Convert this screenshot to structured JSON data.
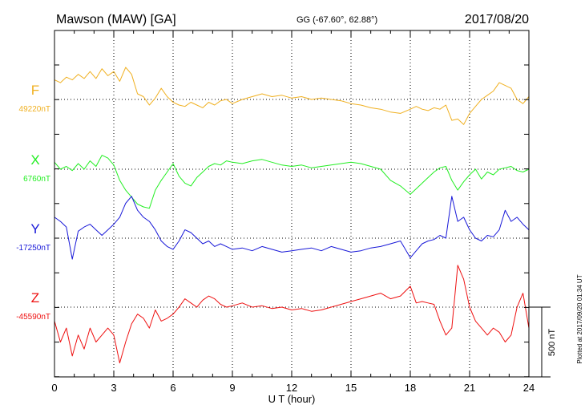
{
  "header": {
    "station": "Mawson (MAW)  [GA]",
    "coords": "GG (-67.60°,  62.88°)",
    "date": "2017/08/20"
  },
  "plotted_note": "Plotted at 2017/09/20 01:34  UT",
  "chart_data": {
    "type": "line",
    "xlabel": "U T (hour)",
    "xlim": [
      0,
      24
    ],
    "xticks": [
      "0",
      "3",
      "6",
      "9",
      "12",
      "15",
      "18",
      "21",
      "24"
    ],
    "grid": "dotted",
    "scale_bar": {
      "label": "500 nT",
      "value_nT": 500
    },
    "series": [
      {
        "name": "F",
        "baseline_label": "49220nT",
        "baseline_nT": 49220,
        "color": "#f0b020",
        "x": [
          0,
          0.3,
          0.6,
          0.9,
          1.2,
          1.5,
          1.8,
          2.1,
          2.4,
          2.7,
          3.0,
          3.3,
          3.6,
          3.9,
          4.2,
          4.5,
          4.8,
          5.1,
          5.4,
          5.7,
          6.0,
          6.3,
          6.6,
          6.9,
          7.2,
          7.5,
          7.8,
          8.1,
          8.4,
          8.7,
          9.0,
          9.5,
          10,
          10.5,
          11,
          11.5,
          12,
          12.5,
          13,
          13.5,
          14,
          14.5,
          15,
          15.5,
          16,
          16.5,
          17,
          17.5,
          18,
          18.3,
          18.6,
          18.9,
          19.2,
          19.5,
          19.8,
          20.1,
          20.4,
          20.7,
          21.0,
          21.3,
          21.6,
          21.9,
          22.2,
          22.5,
          22.8,
          23.1,
          23.4,
          23.7,
          24.0
        ],
        "y": [
          140,
          120,
          160,
          140,
          180,
          150,
          200,
          150,
          220,
          170,
          200,
          130,
          230,
          180,
          40,
          20,
          -40,
          10,
          80,
          20,
          -20,
          -40,
          -50,
          -20,
          -40,
          -60,
          -20,
          -40,
          -10,
          0,
          -30,
          0,
          20,
          40,
          20,
          30,
          10,
          20,
          0,
          10,
          0,
          -10,
          -30,
          -40,
          -60,
          -70,
          -90,
          -100,
          -70,
          -50,
          -70,
          -80,
          -60,
          -70,
          -40,
          -150,
          -140,
          -180,
          -100,
          -50,
          0,
          30,
          60,
          120,
          100,
          80,
          0,
          -30,
          20
        ]
      },
      {
        "name": "X",
        "baseline_label": "6760nT",
        "baseline_nT": 6760,
        "color": "#22ee22",
        "x": [
          0,
          0.3,
          0.6,
          0.9,
          1.2,
          1.5,
          1.8,
          2.1,
          2.4,
          2.7,
          3.0,
          3.3,
          3.6,
          3.9,
          4.2,
          4.5,
          4.8,
          5.1,
          5.4,
          5.7,
          6.0,
          6.3,
          6.6,
          6.9,
          7.2,
          7.5,
          7.8,
          8.1,
          8.4,
          8.7,
          9.0,
          9.5,
          10,
          10.5,
          11,
          11.5,
          12,
          12.5,
          13,
          13.5,
          14,
          14.5,
          15,
          15.5,
          16,
          16.5,
          17,
          17.5,
          18,
          18.3,
          18.6,
          18.9,
          19.2,
          19.5,
          19.8,
          20.1,
          20.4,
          20.7,
          21.0,
          21.3,
          21.6,
          21.9,
          22.2,
          22.5,
          22.8,
          23.1,
          23.4,
          23.7,
          24.0
        ],
        "y": [
          50,
          0,
          20,
          -10,
          40,
          0,
          60,
          20,
          100,
          80,
          30,
          -80,
          -150,
          -200,
          -250,
          -270,
          -280,
          -150,
          -80,
          -20,
          40,
          -50,
          -100,
          -120,
          -60,
          -20,
          20,
          40,
          30,
          60,
          50,
          40,
          60,
          70,
          50,
          30,
          20,
          30,
          10,
          20,
          30,
          40,
          50,
          40,
          20,
          0,
          -80,
          -120,
          -180,
          -140,
          -100,
          -60,
          -20,
          10,
          20,
          -80,
          -150,
          -90,
          -40,
          0,
          -70,
          -20,
          -40,
          0,
          10,
          20,
          -10,
          -20,
          0
        ]
      },
      {
        "name": "Y",
        "baseline_label": "-17250nT",
        "baseline_nT": -17250,
        "color": "#1818d8",
        "x": [
          0,
          0.3,
          0.6,
          0.9,
          1.2,
          1.5,
          1.8,
          2.1,
          2.4,
          2.7,
          3.0,
          3.3,
          3.6,
          3.9,
          4.2,
          4.5,
          4.8,
          5.1,
          5.4,
          5.7,
          6.0,
          6.3,
          6.6,
          6.9,
          7.2,
          7.5,
          7.8,
          8.1,
          8.4,
          8.7,
          9.0,
          9.5,
          10,
          10.5,
          11,
          11.5,
          12,
          12.5,
          13,
          13.5,
          14,
          14.5,
          15,
          15.5,
          16,
          16.5,
          17,
          17.5,
          18,
          18.3,
          18.6,
          18.9,
          19.2,
          19.5,
          19.8,
          20.1,
          20.4,
          20.7,
          21.0,
          21.3,
          21.6,
          21.9,
          22.2,
          22.5,
          22.8,
          23.1,
          23.4,
          23.7,
          24.0
        ],
        "y": [
          150,
          120,
          80,
          -150,
          50,
          80,
          100,
          60,
          20,
          60,
          100,
          150,
          250,
          300,
          200,
          150,
          120,
          60,
          -20,
          -60,
          -80,
          -20,
          60,
          40,
          0,
          -40,
          -20,
          -60,
          -40,
          -60,
          -80,
          -70,
          -90,
          -60,
          -80,
          -100,
          -90,
          -80,
          -70,
          -90,
          -60,
          -80,
          -100,
          -90,
          -70,
          -60,
          -40,
          -20,
          -140,
          -90,
          -40,
          -20,
          -10,
          20,
          0,
          300,
          120,
          150,
          60,
          0,
          -20,
          20,
          10,
          60,
          200,
          120,
          150,
          100,
          60
        ]
      },
      {
        "name": "Z",
        "baseline_label": "-45590nT",
        "baseline_nT": -45590,
        "color": "#ee1010",
        "x": [
          0,
          0.3,
          0.6,
          0.9,
          1.2,
          1.5,
          1.8,
          2.1,
          2.4,
          2.7,
          3.0,
          3.3,
          3.6,
          3.9,
          4.2,
          4.5,
          4.8,
          5.1,
          5.4,
          5.7,
          6.0,
          6.3,
          6.6,
          6.9,
          7.2,
          7.5,
          7.8,
          8.1,
          8.4,
          8.7,
          9.0,
          9.5,
          10,
          10.5,
          11,
          11.5,
          12,
          12.5,
          13,
          13.5,
          14,
          14.5,
          15,
          15.5,
          16,
          16.5,
          17,
          17.5,
          18,
          18.3,
          18.6,
          18.9,
          19.2,
          19.5,
          19.8,
          20.1,
          20.4,
          20.7,
          21.0,
          21.3,
          21.6,
          21.9,
          22.2,
          22.5,
          22.8,
          23.1,
          23.4,
          23.7,
          24.0
        ],
        "y": [
          -100,
          -250,
          -150,
          -350,
          -200,
          -300,
          -150,
          -250,
          -200,
          -150,
          -200,
          -400,
          -250,
          -120,
          -50,
          -80,
          -150,
          -20,
          -100,
          -80,
          -50,
          0,
          60,
          30,
          0,
          50,
          80,
          60,
          20,
          0,
          10,
          30,
          0,
          10,
          -10,
          0,
          -20,
          -10,
          -30,
          -20,
          0,
          20,
          40,
          60,
          80,
          100,
          60,
          80,
          150,
          30,
          40,
          30,
          20,
          -100,
          -200,
          -150,
          300,
          200,
          0,
          -100,
          -150,
          -200,
          -150,
          -180,
          -250,
          -200,
          0,
          100,
          -150
        ]
      }
    ]
  }
}
